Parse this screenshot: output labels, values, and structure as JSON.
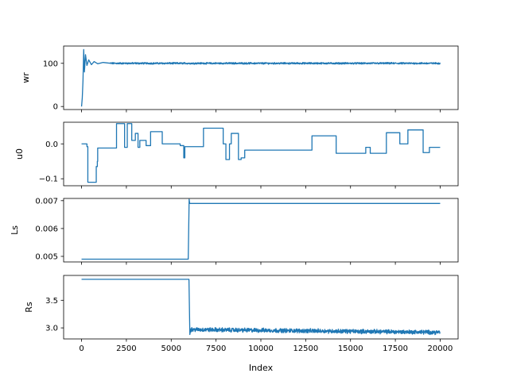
{
  "chart_data": {
    "type": "line",
    "xlabel": "Index",
    "xlim": [
      -1000,
      21000
    ],
    "xticks": [
      0,
      2500,
      5000,
      7500,
      10000,
      12500,
      15000,
      17500,
      20000
    ],
    "xtick_labels": [
      "0",
      "2500",
      "5000",
      "7500",
      "10000",
      "12500",
      "15000",
      "17500",
      "20000"
    ],
    "color": "#1f77b4",
    "panels": [
      {
        "ylabel": "wr",
        "ylim": [
          -7,
          140
        ],
        "yticks": [
          0,
          100
        ],
        "ytick_labels": [
          "0",
          "100"
        ],
        "noise": 1.5,
        "segments": [
          [
            0,
            0
          ],
          [
            40,
            20
          ],
          [
            80,
            60
          ],
          [
            120,
            132
          ],
          [
            160,
            80
          ],
          [
            220,
            120
          ],
          [
            300,
            95
          ],
          [
            400,
            108
          ],
          [
            550,
            97
          ],
          [
            700,
            104
          ],
          [
            900,
            99
          ],
          [
            1200,
            102
          ],
          [
            1600,
            100
          ],
          [
            20000,
            100
          ]
        ]
      },
      {
        "ylabel": "u0",
        "ylim": [
          -0.12,
          0.062
        ],
        "yticks": [
          -0.1,
          0.0
        ],
        "ytick_labels": [
          "−0.1",
          "0.0"
        ],
        "steps": [
          [
            0,
            0.0
          ],
          [
            300,
            -0.008
          ],
          [
            350,
            -0.11
          ],
          [
            820,
            -0.065
          ],
          [
            880,
            -0.05
          ],
          [
            900,
            -0.012
          ],
          [
            1950,
            0.058
          ],
          [
            2400,
            -0.01
          ],
          [
            2550,
            0.058
          ],
          [
            2800,
            0.01
          ],
          [
            3000,
            0.03
          ],
          [
            3150,
            -0.01
          ],
          [
            3250,
            0.01
          ],
          [
            3600,
            -0.005
          ],
          [
            3850,
            0.035
          ],
          [
            4500,
            0.0
          ],
          [
            5500,
            -0.005
          ],
          [
            5700,
            -0.04
          ],
          [
            5760,
            -0.008
          ],
          [
            6800,
            0.045
          ],
          [
            7900,
            0.0
          ],
          [
            8050,
            -0.045
          ],
          [
            8250,
            0.0
          ],
          [
            8350,
            0.03
          ],
          [
            8750,
            -0.045
          ],
          [
            8900,
            -0.04
          ],
          [
            9100,
            -0.018
          ],
          [
            12850,
            0.023
          ],
          [
            14200,
            -0.027
          ],
          [
            15850,
            -0.01
          ],
          [
            16100,
            -0.027
          ],
          [
            17000,
            0.032
          ],
          [
            17750,
            0.0
          ],
          [
            18200,
            0.04
          ],
          [
            19050,
            -0.025
          ],
          [
            19400,
            -0.01
          ],
          [
            20000,
            -0.01
          ]
        ]
      },
      {
        "ylabel": "Ls",
        "ylim": [
          0.0048,
          0.00708
        ],
        "yticks": [
          0.005,
          0.006,
          0.007
        ],
        "ytick_labels": [
          "0.005",
          "0.006",
          "0.007"
        ],
        "segments": [
          [
            0,
            0.0049
          ],
          [
            5950,
            0.0049
          ],
          [
            6000,
            0.00705
          ],
          [
            6030,
            0.0069
          ],
          [
            20000,
            0.0069
          ]
        ]
      },
      {
        "ylabel": "Rs",
        "ylim": [
          2.8,
          3.95
        ],
        "yticks": [
          3.0,
          3.5
        ],
        "ytick_labels": [
          "3.0",
          "3.5"
        ],
        "noise": 0.03,
        "noise_start": 6050,
        "segments": [
          [
            0,
            3.88
          ],
          [
            5990,
            3.88
          ],
          [
            6040,
            2.88
          ],
          [
            6100,
            2.97
          ],
          [
            20000,
            2.92
          ]
        ]
      }
    ]
  }
}
